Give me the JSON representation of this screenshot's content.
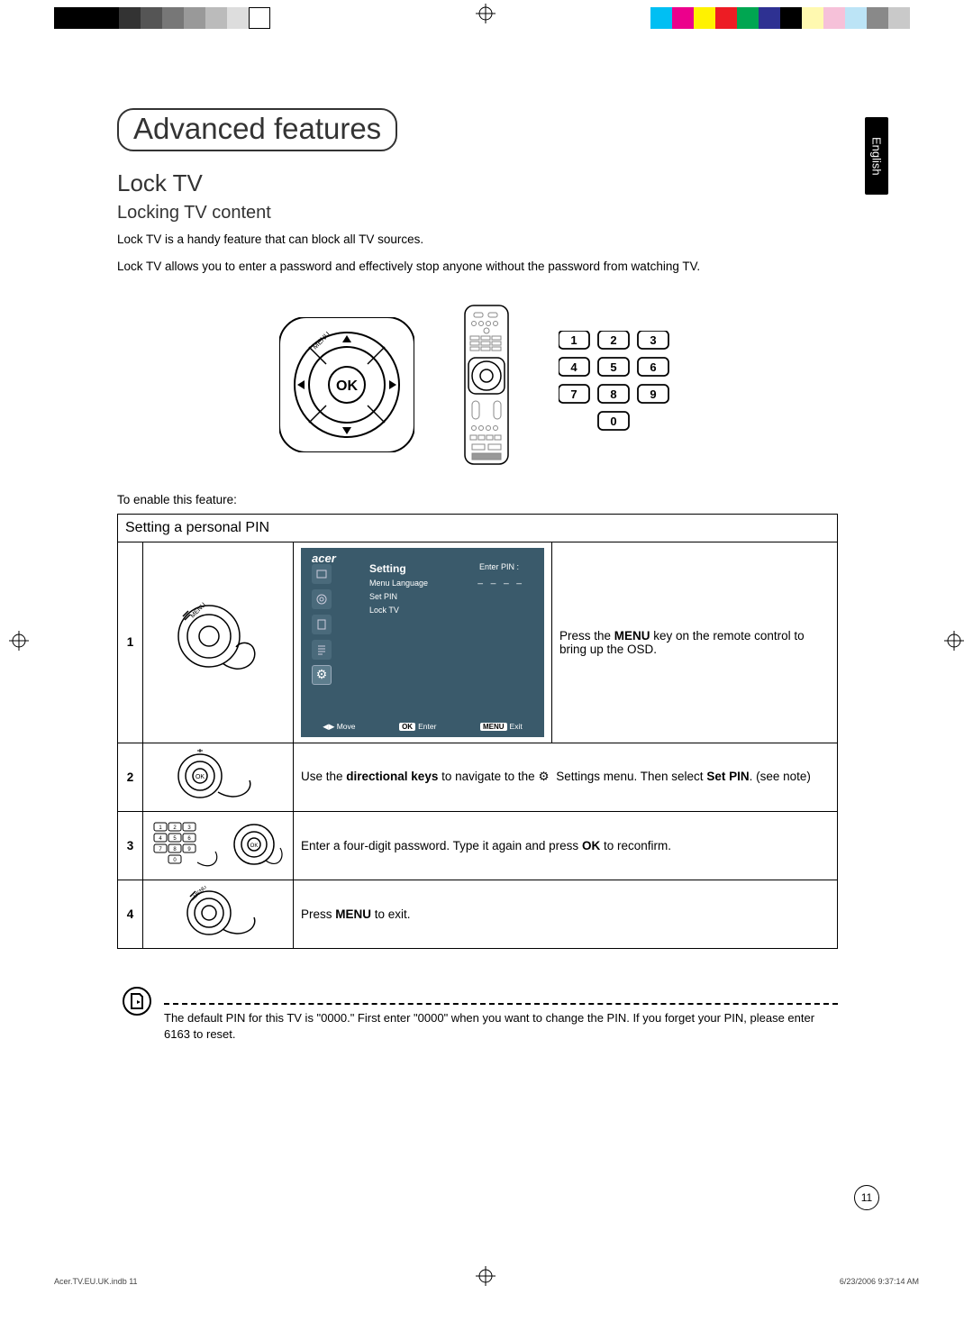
{
  "document": {
    "section_title": "Advanced features",
    "h2": "Lock TV",
    "h3": "Locking TV content",
    "para1": "Lock TV is a handy feature that can block all TV sources.",
    "para2": "Lock TV allows you to enter a password and effectively stop anyone without the password from watching TV.",
    "enable_text": "To enable this feature:",
    "language_tab": "English",
    "page_number": "11"
  },
  "numpad": {
    "keys": [
      "1",
      "2",
      "3",
      "4",
      "5",
      "6",
      "7",
      "8",
      "9",
      "0"
    ],
    "key_border": "#000000",
    "key_bg": "#ffffff",
    "key_radius": 5
  },
  "ok_pad": {
    "center_label": "OK",
    "top_label": "MENU"
  },
  "table": {
    "header": "Setting a personal PIN",
    "rows": {
      "1": {
        "num": "1",
        "desc_pre": "Press the ",
        "desc_bold": "MENU",
        "desc_post": " key on the remote control to bring up the OSD."
      },
      "2": {
        "num": "2",
        "desc_pre": "Use the ",
        "desc_b1": "directional keys",
        "desc_mid": " to navigate to the ",
        "desc_mid2": " Settings menu. Then select ",
        "desc_b2": "Set PIN",
        "desc_post": ". (see note)"
      },
      "3": {
        "num": "3",
        "desc_pre": "Enter a four-digit password. Type it again and press ",
        "desc_bold": "OK",
        "desc_post": " to reconfirm."
      },
      "4": {
        "num": "4",
        "desc_pre": "Press ",
        "desc_bold": "MENU",
        "desc_post": " to exit."
      }
    }
  },
  "osd": {
    "brand": "acer",
    "panel_title": "Setting",
    "menu_items": [
      "Menu Language",
      "Set PIN",
      "Lock TV"
    ],
    "enter_pin_label": "Enter PIN :",
    "pin_dashes": "_ _ _ _",
    "footer": {
      "move": "Move",
      "enter": "Enter",
      "exit": "Exit",
      "ok_label": "OK",
      "menu_label": "MENU"
    },
    "bg_color": "#3a5a6b"
  },
  "note": {
    "text": "The default PIN for this TV is \"0000.\" First enter \"0000\" when you want to change the PIN. If you forget your PIN, please enter 6163 to reset."
  },
  "footer_meta": {
    "left": "Acer.TV.EU.UK.indb   11",
    "right": "6/23/2006   9:37:14 AM"
  },
  "colors": {
    "text": "#000000",
    "heading": "#333333",
    "osd_bg": "#3a5a6b"
  }
}
